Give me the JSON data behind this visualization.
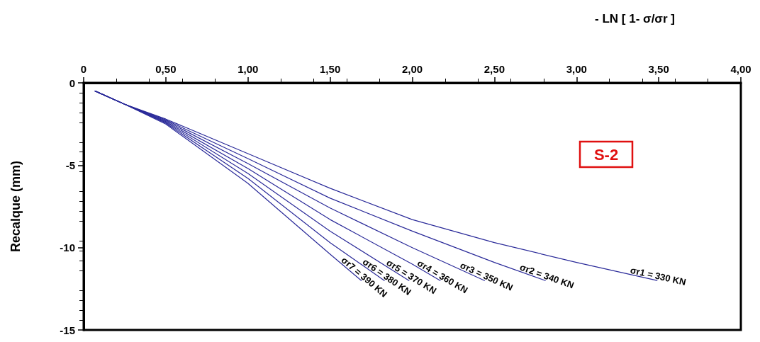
{
  "chart_data": {
    "type": "line",
    "xlabel": "- LN [ 1- σ/σr ]",
    "ylabel": "Recalque (mm)",
    "xlim": [
      0,
      4
    ],
    "xticks": [
      0,
      {
        "value": 0.5,
        "label": "0,50"
      },
      {
        "value": 1,
        "label": "1,00"
      },
      {
        "value": 1.5,
        "label": "1,50"
      },
      {
        "value": 2,
        "label": "2,00"
      },
      {
        "value": 2.5,
        "label": "2,50"
      },
      {
        "value": 3,
        "label": "3,00"
      },
      {
        "value": 3.5,
        "label": "3,50"
      },
      {
        "value": 4,
        "label": "4,00"
      }
    ],
    "ylim": [
      -15,
      0
    ],
    "yticks": [
      0,
      -5,
      -10,
      -15
    ],
    "grid": false,
    "legend": false,
    "marker": "none",
    "line_style": "solid",
    "annotations": [
      "S-2"
    ],
    "series": [
      {
        "name": "σr1 = 330 KN",
        "color": "#2a2a99",
        "x": [
          0.07,
          0.25,
          0.5,
          1.0,
          1.5,
          2.0,
          2.5,
          3.0,
          3.49
        ],
        "values": [
          -0.5,
          -1.3,
          -2.2,
          -4.3,
          -6.4,
          -8.3,
          -9.7,
          -10.9,
          -12
        ]
      },
      {
        "name": "σr2 = 340 KN",
        "color": "#2a2a99",
        "x": [
          0.07,
          0.25,
          0.5,
          1.0,
          1.5,
          2.0,
          2.5,
          2.81
        ],
        "values": [
          -0.5,
          -1.3,
          -2.25,
          -4.6,
          -7.0,
          -9.0,
          -10.9,
          -12
        ]
      },
      {
        "name": "σr3 = 350 KN",
        "color": "#2a2a99",
        "x": [
          0.07,
          0.25,
          0.5,
          1.0,
          1.5,
          2.0,
          2.44
        ],
        "values": [
          -0.5,
          -1.3,
          -2.3,
          -4.9,
          -7.6,
          -10.0,
          -12
        ]
      },
      {
        "name": "σr4 = 360 KN",
        "color": "#2a2a99",
        "x": [
          0.07,
          0.25,
          0.5,
          1.0,
          1.5,
          2.0,
          2.17
        ],
        "values": [
          -0.5,
          -1.3,
          -2.35,
          -5.2,
          -8.3,
          -11.0,
          -12
        ]
      },
      {
        "name": "σr5 = 370 KN",
        "color": "#2a2a99",
        "x": [
          0.07,
          0.25,
          0.5,
          1.0,
          1.5,
          1.98
        ],
        "values": [
          -0.5,
          -1.3,
          -2.4,
          -5.5,
          -9.0,
          -12
        ]
      },
      {
        "name": "σr6 = 380 KN",
        "color": "#2a2a99",
        "x": [
          0.07,
          0.25,
          0.5,
          1.0,
          1.5,
          1.83
        ],
        "values": [
          -0.5,
          -1.3,
          -2.45,
          -5.8,
          -9.7,
          -12
        ]
      },
      {
        "name": "σr7 = 390 KN",
        "color": "#2a2a99",
        "x": [
          0.07,
          0.25,
          0.5,
          1.0,
          1.5,
          1.69
        ],
        "values": [
          -0.5,
          -1.3,
          -2.5,
          -6.1,
          -10.4,
          -12
        ]
      }
    ]
  }
}
